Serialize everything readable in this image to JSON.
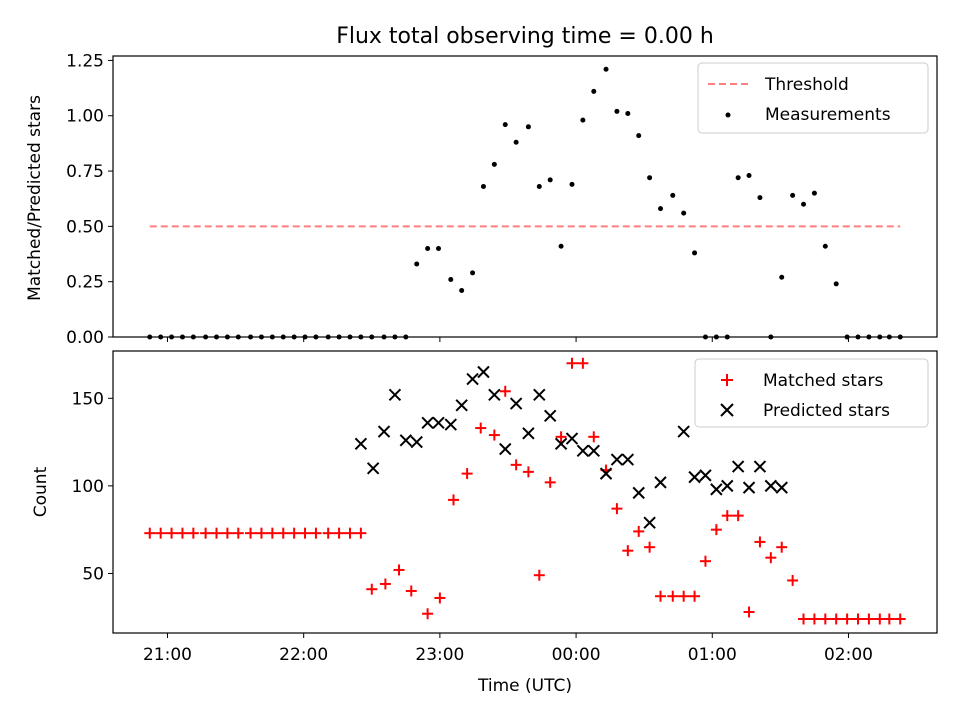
{
  "chart_data": [
    {
      "type": "scatter",
      "title": "Flux total observing time = 0.00 h",
      "xlabel": "",
      "ylabel": "Matched/Predicted stars",
      "ylim": [
        0,
        1.27
      ],
      "yticks": [
        "0.00",
        "0.25",
        "0.50",
        "0.75",
        "1.00",
        "1.25"
      ],
      "xlim": [
        -3.4,
        2.65
      ],
      "x_ticks": [
        -3,
        -2,
        -1,
        0,
        1,
        2
      ],
      "legend_position": "upper right",
      "series": [
        {
          "name": "Threshold",
          "style": "dashed-line",
          "color": "#ff7f7f",
          "x": [
            -3.13,
            2.38
          ],
          "y": [
            0.5,
            0.5
          ]
        },
        {
          "name": "Measurements",
          "style": "dot",
          "color": "#000000",
          "x": [
            -3.13,
            -3.05,
            -2.97,
            -2.89,
            -2.81,
            -2.72,
            -2.64,
            -2.56,
            -2.48,
            -2.39,
            -2.31,
            -2.23,
            -2.15,
            -2.07,
            -1.99,
            -1.91,
            -1.82,
            -1.74,
            -1.66,
            -1.58,
            -1.5,
            -1.41,
            -1.33,
            -1.25,
            -1.17,
            -1.09,
            -1.01,
            -0.92,
            -0.84,
            -0.76,
            -0.68,
            -0.6,
            -0.52,
            -0.44,
            -0.35,
            -0.27,
            -0.19,
            -0.11,
            -0.03,
            0.05,
            0.13,
            0.22,
            0.3,
            0.38,
            0.46,
            0.54,
            0.62,
            0.71,
            0.79,
            0.87,
            0.95,
            1.03,
            1.11,
            1.19,
            1.27,
            1.35,
            1.43,
            1.51,
            1.59,
            1.67,
            1.75,
            1.83,
            1.91,
            1.99,
            2.07,
            2.15,
            2.23,
            2.3,
            2.38
          ],
          "y": [
            0,
            0,
            0,
            0,
            0,
            0,
            0,
            0,
            0,
            0,
            0,
            0,
            0,
            0,
            0,
            0,
            0,
            0,
            0,
            0,
            0,
            0,
            0,
            0,
            0.33,
            0.4,
            0.4,
            0.26,
            0.21,
            0.29,
            0.68,
            0.78,
            0.96,
            0.88,
            0.95,
            0.68,
            0.71,
            0.41,
            0.69,
            0.98,
            1.11,
            1.21,
            1.02,
            1.01,
            0.91,
            0.72,
            0.58,
            0.64,
            0.56,
            0.38,
            0,
            0,
            0,
            0.72,
            0.73,
            0.63,
            0,
            0.27,
            0.64,
            0.6,
            0.65,
            0.41,
            0.24,
            0,
            0,
            0,
            0,
            0,
            0
          ]
        }
      ]
    },
    {
      "type": "scatter",
      "title": "",
      "xlabel": "Time (UTC)",
      "ylabel": "Count",
      "ylim": [
        16,
        177
      ],
      "yticks": [
        "50",
        "100",
        "150"
      ],
      "xlim": [
        -3.4,
        2.65
      ],
      "x_ticks": [
        -3,
        -2,
        -1,
        0,
        1,
        2
      ],
      "x_tick_labels": [
        "21:00",
        "22:00",
        "23:00",
        "00:00",
        "01:00",
        "02:00"
      ],
      "legend_position": "upper right",
      "series": [
        {
          "name": "Matched stars",
          "marker": "plus",
          "color": "#ff0000",
          "x": [
            -3.13,
            -3.05,
            -2.97,
            -2.89,
            -2.81,
            -2.72,
            -2.64,
            -2.56,
            -2.48,
            -2.39,
            -2.31,
            -2.23,
            -2.15,
            -2.07,
            -1.99,
            -1.91,
            -1.82,
            -1.74,
            -1.66,
            -1.58,
            -1.5,
            -1.4,
            -1.3,
            -1.21,
            -1.09,
            -1.0,
            -0.9,
            -0.8,
            -0.7,
            -0.6,
            -0.52,
            -0.44,
            -0.35,
            -0.27,
            -0.19,
            -0.11,
            -0.03,
            0.05,
            0.13,
            0.22,
            0.3,
            0.38,
            0.46,
            0.54,
            0.62,
            0.71,
            0.79,
            0.87,
            0.95,
            1.03,
            1.11,
            1.19,
            1.27,
            1.35,
            1.43,
            1.51,
            1.59,
            1.67,
            1.75,
            1.83,
            1.91,
            1.99,
            2.07,
            2.15,
            2.23,
            2.3,
            2.38
          ],
          "y": [
            73,
            73,
            73,
            73,
            73,
            73,
            73,
            73,
            73,
            73,
            73,
            73,
            73,
            73,
            73,
            73,
            73,
            73,
            73,
            73,
            41,
            44,
            52,
            40,
            27,
            36,
            92,
            107,
            133,
            129,
            154,
            112,
            108,
            49,
            102,
            128,
            170,
            170,
            128,
            109,
            87,
            63,
            74,
            65,
            37,
            37,
            37,
            37,
            57,
            75,
            83,
            83,
            28,
            68,
            59,
            65,
            46,
            24,
            24,
            24,
            24,
            24,
            24,
            24,
            24,
            24,
            24
          ]
        },
        {
          "name": "Predicted stars",
          "marker": "x",
          "color": "#000000",
          "x": [
            -1.58,
            -1.49,
            -1.41,
            -1.33,
            -1.25,
            -1.17,
            -1.09,
            -1.01,
            -0.92,
            -0.84,
            -0.76,
            -0.68,
            -0.6,
            -0.52,
            -0.44,
            -0.35,
            -0.27,
            -0.19,
            -0.11,
            -0.03,
            0.05,
            0.13,
            0.22,
            0.3,
            0.38,
            0.46,
            0.54,
            0.62,
            0.79,
            0.87,
            0.95,
            1.03,
            1.11,
            1.19,
            1.27,
            1.35,
            1.43,
            1.51
          ],
          "y": [
            124,
            110,
            131,
            152,
            126,
            125,
            136,
            136,
            135,
            146,
            161,
            165,
            152,
            121,
            147,
            130,
            152,
            140,
            124,
            127,
            120,
            120,
            107,
            115,
            115,
            96,
            79,
            102,
            131,
            105,
            106,
            98,
            100,
            111,
            99,
            111,
            100,
            99
          ]
        }
      ]
    }
  ]
}
